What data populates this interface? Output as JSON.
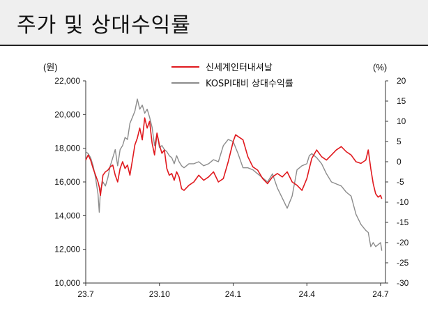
{
  "header": {
    "title": "주가 및 상대수익률"
  },
  "chart_data": {
    "type": "line",
    "left_unit": "(원)",
    "right_unit": "(%)",
    "x_tick_labels": [
      "23.7",
      "23.10",
      "24.1",
      "24.4",
      "24.7"
    ],
    "left_axis": {
      "ticks": [
        "10,000",
        "12,000",
        "14,000",
        "16,000",
        "18,000",
        "20,000",
        "22,000"
      ],
      "ylim": [
        10000,
        22000
      ]
    },
    "right_axis": {
      "ticks": [
        "-30",
        "-25",
        "-20",
        "-15",
        "-10",
        "-5",
        "0",
        "5",
        "10",
        "15",
        "20"
      ],
      "ylim": [
        -30,
        20
      ]
    },
    "x_range_months": [
      0,
      12.2
    ],
    "series": [
      {
        "name": "신세계인터내셔날",
        "axis": "left",
        "color": "#e0191e",
        "x": [
          0,
          0.1,
          0.2,
          0.3,
          0.4,
          0.5,
          0.55,
          0.6,
          0.7,
          0.8,
          0.9,
          1.0,
          1.1,
          1.2,
          1.3,
          1.4,
          1.5,
          1.6,
          1.7,
          1.8,
          1.9,
          2.0,
          2.1,
          2.2,
          2.3,
          2.4,
          2.5,
          2.6,
          2.7,
          2.8,
          2.9,
          3.0,
          3.1,
          3.2,
          3.3,
          3.4,
          3.5,
          3.6,
          3.7,
          3.8,
          3.9,
          4.0,
          4.2,
          4.4,
          4.6,
          4.8,
          5.0,
          5.2,
          5.4,
          5.6,
          5.8,
          6.0,
          6.1,
          6.2,
          6.4,
          6.6,
          6.8,
          7.0,
          7.2,
          7.4,
          7.6,
          7.8,
          8.0,
          8.2,
          8.4,
          8.6,
          8.8,
          9.0,
          9.1,
          9.2,
          9.4,
          9.6,
          9.8,
          10.0,
          10.2,
          10.4,
          10.6,
          10.8,
          11.0,
          11.2,
          11.4,
          11.5,
          11.6,
          11.7,
          11.8,
          11.9,
          12.0,
          12.05
        ],
        "y": [
          17300,
          17600,
          17300,
          16800,
          16400,
          16000,
          15700,
          15200,
          16400,
          16600,
          16700,
          16900,
          17000,
          16400,
          16000,
          16800,
          17200,
          16800,
          17000,
          16400,
          17300,
          18200,
          18600,
          19200,
          18500,
          19800,
          19200,
          19600,
          18300,
          17600,
          18900,
          18200,
          17700,
          17900,
          16800,
          16400,
          16500,
          16100,
          16600,
          16300,
          15600,
          15500,
          15800,
          16000,
          16400,
          16100,
          16300,
          16600,
          16000,
          16200,
          17200,
          18400,
          18800,
          18700,
          18500,
          17500,
          16900,
          16700,
          16200,
          15900,
          16300,
          16500,
          16300,
          16600,
          16000,
          15800,
          15500,
          16200,
          16800,
          17400,
          17900,
          17500,
          17300,
          17600,
          17900,
          18100,
          17800,
          17600,
          17200,
          17100,
          17300,
          17900,
          16800,
          15900,
          15300,
          15100,
          15200,
          15000
        ]
      },
      {
        "name": "KOSPI대비 상대수익률",
        "axis": "right",
        "color": "#8c8c8c",
        "x": [
          0,
          0.1,
          0.2,
          0.3,
          0.4,
          0.5,
          0.55,
          0.6,
          0.7,
          0.8,
          0.9,
          1.0,
          1.1,
          1.2,
          1.3,
          1.4,
          1.5,
          1.6,
          1.7,
          1.8,
          1.9,
          2.0,
          2.1,
          2.2,
          2.3,
          2.4,
          2.5,
          2.6,
          2.7,
          2.8,
          2.9,
          3.0,
          3.1,
          3.2,
          3.3,
          3.4,
          3.5,
          3.6,
          3.7,
          3.8,
          3.9,
          4.0,
          4.2,
          4.4,
          4.6,
          4.8,
          5.0,
          5.2,
          5.4,
          5.6,
          5.8,
          6.0,
          6.1,
          6.2,
          6.4,
          6.6,
          6.8,
          7.0,
          7.2,
          7.4,
          7.6,
          7.8,
          8.0,
          8.2,
          8.4,
          8.6,
          8.8,
          9.0,
          9.1,
          9.2,
          9.4,
          9.6,
          9.8,
          10.0,
          10.2,
          10.4,
          10.6,
          10.8,
          11.0,
          11.2,
          11.4,
          11.5,
          11.6,
          11.7,
          11.8,
          11.9,
          12.0,
          12.05
        ],
        "y": [
          2.5,
          2.0,
          1.0,
          -1.0,
          -4.0,
          -8.0,
          -12.5,
          -7.0,
          -5.0,
          -6.0,
          -4.0,
          -1.0,
          1.0,
          3.0,
          -1.0,
          3.0,
          4.0,
          6.0,
          5.5,
          9.5,
          11.0,
          12.5,
          15.5,
          13.0,
          14.0,
          12.0,
          13.0,
          11.0,
          8.5,
          4.0,
          7.0,
          3.5,
          4.0,
          3.0,
          2.5,
          1.5,
          1.0,
          -0.5,
          1.5,
          0.0,
          -1.0,
          -1.5,
          -0.5,
          -0.5,
          0.0,
          -1.0,
          -0.5,
          0.5,
          0.0,
          4.0,
          5.5,
          5.0,
          3.5,
          2.0,
          -1.5,
          -1.5,
          -2.0,
          -3.0,
          -4.0,
          -5.0,
          -3.0,
          -6.5,
          -9.0,
          -11.5,
          -8.5,
          -2.0,
          -1.0,
          -0.5,
          1.5,
          2.0,
          1.0,
          -0.5,
          -3.0,
          -5.0,
          -5.5,
          -6.0,
          -7.5,
          -8.5,
          -13.0,
          -15.5,
          -17.0,
          -17.5,
          -21.0,
          -20.0,
          -21.0,
          -20.5,
          -20.0,
          -22.0
        ]
      }
    ]
  }
}
